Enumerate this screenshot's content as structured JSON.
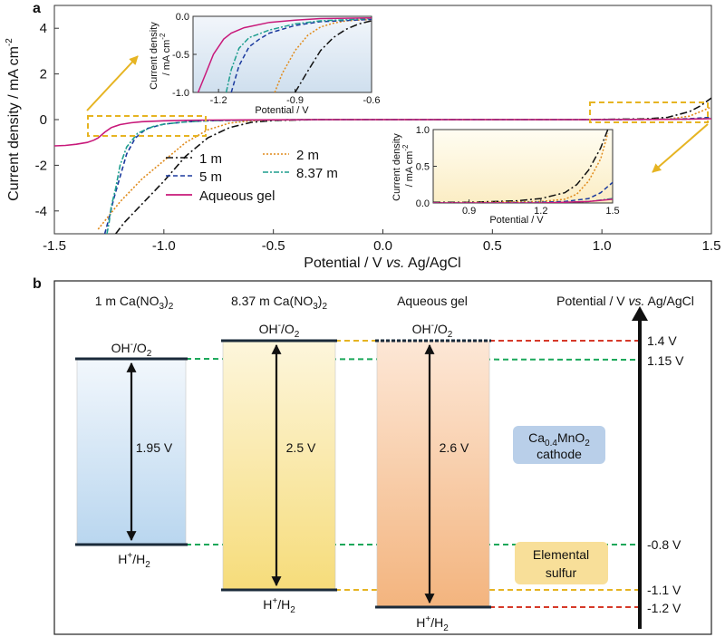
{
  "panel_a": {
    "label": "a",
    "xlabel_prefix": "Potential / V ",
    "xlabel_italic": "vs.",
    "xlabel_suffix": " Ag/AgCl",
    "ylabel": "Current density / mA cm",
    "ylabel_sup": "-2",
    "inset_left": {
      "ylabel_line1": "Current density",
      "ylabel_line2": "/ mA cm",
      "ylabel_sup": "-2",
      "xlabel": "Potential / V"
    },
    "inset_right": {
      "ylabel_line1": "Current density",
      "ylabel_line2": "/ mA cm",
      "ylabel_sup": "-2",
      "xlabel": "Potential / V"
    }
  },
  "panel_b": {
    "label": "b",
    "col1_title_main": "1 m Ca(NO",
    "col1_title_sub": "3",
    "col1_title_end": ")",
    "col1_title_sub2": "2",
    "col2_title_main": "8.37 m Ca(NO",
    "col2_title_sub": "3",
    "col2_title_end": ")",
    "col2_title_sub2": "2",
    "col3_title": "Aqueous gel",
    "axis_title_prefix": "Potential / V ",
    "axis_title_italic": "vs.",
    "axis_title_suffix": " Ag/AgCl",
    "oh_label": "OH",
    "oh_sup": "-",
    "oh_end": "/O",
    "oh_sub": "2",
    "h_label": "H",
    "h_sup": "+",
    "h_end": "/H",
    "h_sub": "2",
    "windows": [
      "1.95 V",
      "2.5 V",
      "2.6 V"
    ],
    "potentials": [
      "1.4 V",
      "1.15 V",
      "-0.8 V",
      "-1.1 V",
      "-1.2 V"
    ],
    "cathode_line1_main": "Ca",
    "cathode_line1_sub": "0.4",
    "cathode_line1_end": "MnO",
    "cathode_line1_sub2": "2",
    "cathode_line2": "cathode",
    "anode_line1": "Elemental",
    "anode_line2": "sulfur",
    "colors": {
      "green": "#1aa85a",
      "yellow": "#e6b422",
      "red": "#d63a2a"
    }
  },
  "chart_data": [
    {
      "type": "line",
      "xlim": [
        -1.5,
        1.5
      ],
      "ylim": [
        -5,
        5
      ],
      "xticks": [
        -1.5,
        -1.0,
        -0.5,
        0.0,
        0.5,
        1.0,
        1.5
      ],
      "xtick_labels": [
        "-1.5",
        "-1.0",
        "-0.5",
        "0.0",
        "0.5",
        "1.0",
        "1.5"
      ],
      "yticks": [
        -4,
        -2,
        0,
        2,
        4
      ],
      "ytick_labels": [
        "-4",
        "-2",
        "0",
        "2",
        "4"
      ],
      "legend": "bottom-left",
      "series": [
        {
          "name": "1 m",
          "color": "#111111",
          "dash": "8 3 2 3",
          "x": [
            -1.22,
            -1.18,
            -1.1,
            -1.0,
            -0.9,
            -0.8,
            -0.7,
            -0.6,
            -0.5,
            -0.3,
            0.0,
            0.5,
            0.9,
            1.2,
            1.3,
            1.4,
            1.45,
            1.5
          ],
          "y": [
            -5,
            -4.5,
            -3.7,
            -2.7,
            -1.6,
            -0.8,
            -0.35,
            -0.12,
            -0.04,
            0,
            0,
            0,
            0,
            0.03,
            0.1,
            0.35,
            0.6,
            0.95
          ]
        },
        {
          "name": "2 m",
          "color": "#e08a1a",
          "dash": "2 2",
          "x": [
            -1.3,
            -1.25,
            -1.2,
            -1.1,
            -1.0,
            -0.9,
            -0.8,
            -0.7,
            -0.6,
            -0.5,
            -0.3,
            0.0,
            0.5,
            1.0,
            1.3,
            1.4,
            1.45,
            1.5
          ],
          "y": [
            -4.8,
            -4.2,
            -3.6,
            -2.6,
            -1.8,
            -1.0,
            -0.45,
            -0.15,
            -0.05,
            -0.02,
            0,
            0,
            0,
            0,
            0.02,
            0.15,
            0.35,
            0.55
          ]
        },
        {
          "name": "5 m",
          "color": "#1b3a9e",
          "dash": "5 3",
          "x": [
            -1.27,
            -1.25,
            -1.23,
            -1.2,
            -1.17,
            -1.13,
            -1.08,
            -1.0,
            -0.9,
            -0.8,
            -0.6,
            -0.3,
            0.0,
            0.5,
            1.0,
            1.3,
            1.4,
            1.5
          ],
          "y": [
            -5,
            -4.3,
            -3.5,
            -2.5,
            -1.5,
            -0.8,
            -0.4,
            -0.2,
            -0.1,
            -0.05,
            -0.02,
            0,
            0,
            0,
            0,
            0.01,
            0.04,
            0.1
          ]
        },
        {
          "name": "8.37 m",
          "color": "#1e9e8e",
          "dash": "6 2 2 2",
          "x": [
            -1.26,
            -1.25,
            -1.24,
            -1.22,
            -1.2,
            -1.17,
            -1.12,
            -1.05,
            -1.0,
            -0.9,
            -0.8,
            -0.6,
            -0.3,
            0.0,
            0.5,
            1.0,
            1.4,
            1.5
          ],
          "y": [
            -5,
            -4.5,
            -3.8,
            -3.0,
            -2.0,
            -1.2,
            -0.6,
            -0.3,
            -0.2,
            -0.1,
            -0.05,
            -0.02,
            0,
            0,
            0,
            0,
            0.02,
            0.06
          ]
        },
        {
          "name": "Aqueous gel",
          "color": "#c8197a",
          "dash": "",
          "x": [
            -1.5,
            -1.45,
            -1.4,
            -1.35,
            -1.32,
            -1.3,
            -1.27,
            -1.24,
            -1.2,
            -1.15,
            -1.1,
            -1.0,
            -0.9,
            -0.8,
            -0.6,
            -0.3,
            0.0,
            0.5,
            1.0,
            1.3,
            1.4,
            1.5
          ],
          "y": [
            -1.15,
            -1.13,
            -1.08,
            -1.0,
            -0.9,
            -0.8,
            -0.55,
            -0.35,
            -0.22,
            -0.14,
            -0.09,
            -0.05,
            -0.03,
            -0.02,
            -0.01,
            0,
            0,
            0,
            0,
            0.01,
            0.02,
            0.04
          ]
        }
      ]
    },
    {
      "type": "line",
      "xlim": [
        -1.3,
        -0.6
      ],
      "ylim": [
        -1.0,
        0.0
      ],
      "xtick_labels": [
        "-1.2",
        "-0.9",
        "-0.6"
      ],
      "ytick_labels": [
        "0.0",
        "-0.5",
        "-1.0"
      ],
      "series": [
        {
          "name": "1 m",
          "x": [
            -0.9,
            -0.85,
            -0.8,
            -0.75,
            -0.7,
            -0.65,
            -0.6
          ],
          "y": [
            -1.0,
            -0.72,
            -0.45,
            -0.28,
            -0.17,
            -0.1,
            -0.06
          ]
        },
        {
          "name": "2 m",
          "x": [
            -0.98,
            -0.95,
            -0.9,
            -0.85,
            -0.8,
            -0.75,
            -0.7,
            -0.6
          ],
          "y": [
            -1.0,
            -0.75,
            -0.45,
            -0.25,
            -0.14,
            -0.09,
            -0.06,
            -0.04
          ]
        },
        {
          "name": "5 m",
          "x": [
            -1.15,
            -1.12,
            -1.08,
            -1.04,
            -1.0,
            -0.9,
            -0.8,
            -0.6
          ],
          "y": [
            -1.0,
            -0.65,
            -0.4,
            -0.3,
            -0.22,
            -0.12,
            -0.07,
            -0.04
          ]
        },
        {
          "name": "8.37 m",
          "x": [
            -1.17,
            -1.15,
            -1.12,
            -1.08,
            -1.0,
            -0.9,
            -0.8,
            -0.6
          ],
          "y": [
            -1.0,
            -0.7,
            -0.42,
            -0.28,
            -0.18,
            -0.1,
            -0.06,
            -0.03
          ]
        },
        {
          "name": "Aqueous gel",
          "x": [
            -1.28,
            -1.25,
            -1.22,
            -1.18,
            -1.15,
            -1.1,
            -1.0,
            -0.9,
            -0.8,
            -0.6
          ],
          "y": [
            -1.0,
            -0.75,
            -0.5,
            -0.3,
            -0.22,
            -0.15,
            -0.08,
            -0.05,
            -0.03,
            -0.02
          ]
        }
      ]
    },
    {
      "type": "line",
      "xlim": [
        0.75,
        1.5
      ],
      "ylim": [
        0.0,
        1.0
      ],
      "xtick_labels": [
        "0.9",
        "1.2",
        "1.5"
      ],
      "ytick_labels": [
        "1.0",
        "0.5",
        "0.0"
      ],
      "series": [
        {
          "name": "1 m",
          "x": [
            0.75,
            0.9,
            1.1,
            1.2,
            1.3,
            1.35,
            1.4,
            1.45,
            1.48
          ],
          "y": [
            0.01,
            0.01,
            0.03,
            0.06,
            0.14,
            0.25,
            0.45,
            0.75,
            1.0
          ]
        },
        {
          "name": "2 m",
          "x": [
            0.75,
            1.0,
            1.2,
            1.3,
            1.35,
            1.4,
            1.45,
            1.48
          ],
          "y": [
            0,
            0.01,
            0.02,
            0.05,
            0.12,
            0.3,
            0.6,
            0.95
          ]
        },
        {
          "name": "5 m",
          "x": [
            0.75,
            1.0,
            1.2,
            1.3,
            1.4,
            1.45,
            1.5
          ],
          "y": [
            0,
            0,
            0.01,
            0.02,
            0.06,
            0.14,
            0.28
          ]
        },
        {
          "name": "8.37 m",
          "x": [
            0.75,
            1.0,
            1.2,
            1.3,
            1.4,
            1.5
          ],
          "y": [
            0,
            0,
            0,
            0.01,
            0.02,
            0.06
          ]
        },
        {
          "name": "Aqueous gel",
          "x": [
            0.75,
            1.0,
            1.2,
            1.3,
            1.4,
            1.5
          ],
          "y": [
            0,
            0,
            0,
            0.01,
            0.02,
            0.05
          ]
        }
      ]
    }
  ]
}
